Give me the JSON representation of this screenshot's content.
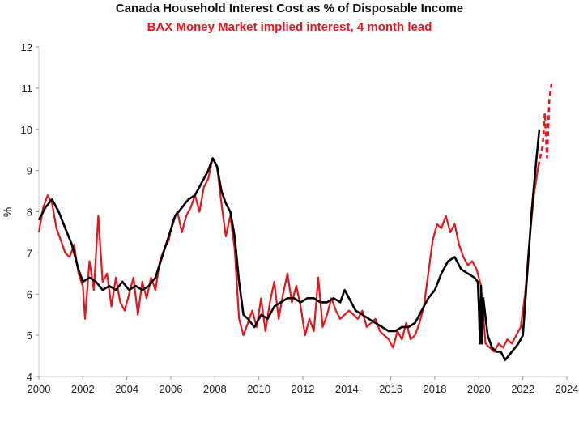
{
  "chart_data": {
    "type": "line",
    "title": "Canada Household Interest Cost as % of Disposable Income",
    "subtitle": "BAX Money Market implied interest, 4 month lead",
    "xlabel": "",
    "ylabel": "%",
    "xlim": [
      2000,
      2024
    ],
    "ylim": [
      4,
      12
    ],
    "x_ticks": [
      "2000",
      "2002",
      "2004",
      "2006",
      "2008",
      "2010",
      "2012",
      "2014",
      "2016",
      "2018",
      "2020",
      "2022",
      "2024"
    ],
    "y_ticks": [
      "4",
      "5",
      "6",
      "7",
      "8",
      "9",
      "10",
      "11",
      "12"
    ],
    "grid": false,
    "legend": "none",
    "series": [
      {
        "name": "Canada Household Interest Cost as % of Disposable Income",
        "color": "#000000",
        "x": [
          2000.0,
          2000.3,
          2000.6,
          2000.9,
          2001.2,
          2001.5,
          2001.8,
          2002.0,
          2002.3,
          2002.6,
          2002.9,
          2003.2,
          2003.5,
          2003.8,
          2004.1,
          2004.4,
          2004.7,
          2005.0,
          2005.3,
          2005.6,
          2005.9,
          2006.2,
          2006.5,
          2006.8,
          2007.1,
          2007.4,
          2007.7,
          2007.9,
          2008.1,
          2008.3,
          2008.5,
          2008.7,
          2008.9,
          2009.1,
          2009.3,
          2009.5,
          2009.8,
          2010.1,
          2010.4,
          2010.7,
          2011.0,
          2011.3,
          2011.6,
          2011.9,
          2012.2,
          2012.5,
          2012.8,
          2013.1,
          2013.4,
          2013.7,
          2013.9,
          2014.1,
          2014.4,
          2014.7,
          2015.0,
          2015.3,
          2015.6,
          2015.9,
          2016.2,
          2016.5,
          2016.8,
          2017.1,
          2017.4,
          2017.7,
          2018.0,
          2018.3,
          2018.6,
          2018.9,
          2019.2,
          2019.5,
          2019.8,
          2019.95,
          2020.0,
          2020.05,
          2020.1,
          2020.15,
          2020.2,
          2020.4,
          2020.6,
          2020.8,
          2021.0,
          2021.2,
          2021.5,
          2021.8,
          2022.0,
          2022.2,
          2022.4,
          2022.6,
          2022.75
        ],
        "y": [
          7.8,
          8.1,
          8.3,
          8.0,
          7.6,
          7.2,
          6.6,
          6.3,
          6.4,
          6.3,
          6.1,
          6.2,
          6.1,
          6.3,
          6.1,
          6.2,
          6.1,
          6.2,
          6.4,
          6.9,
          7.4,
          7.9,
          8.1,
          8.3,
          8.4,
          8.7,
          9.0,
          9.3,
          9.1,
          8.5,
          8.2,
          8.0,
          7.4,
          6.3,
          5.5,
          5.4,
          5.2,
          5.5,
          5.4,
          5.7,
          5.8,
          5.9,
          5.9,
          5.8,
          5.9,
          5.9,
          5.8,
          5.8,
          5.9,
          5.8,
          6.1,
          5.9,
          5.6,
          5.5,
          5.4,
          5.3,
          5.2,
          5.1,
          5.1,
          5.2,
          5.2,
          5.3,
          5.6,
          5.9,
          6.1,
          6.5,
          6.8,
          6.9,
          6.6,
          6.5,
          6.4,
          6.3,
          5.7,
          4.8,
          6.2,
          4.8,
          5.9,
          5.0,
          4.7,
          4.6,
          4.6,
          4.4,
          4.6,
          4.8,
          5.0,
          6.5,
          8.0,
          9.2,
          10.0
        ]
      },
      {
        "name": "BAX Money Market implied interest, 4 month lead",
        "color": "#e8141c",
        "dashed_from": 2022.9,
        "x": [
          2000.0,
          2000.2,
          2000.4,
          2000.6,
          2000.8,
          2001.0,
          2001.2,
          2001.4,
          2001.6,
          2001.8,
          2002.0,
          2002.1,
          2002.3,
          2002.5,
          2002.7,
          2002.9,
          2003.1,
          2003.3,
          2003.5,
          2003.7,
          2003.9,
          2004.1,
          2004.3,
          2004.5,
          2004.7,
          2004.9,
          2005.1,
          2005.3,
          2005.5,
          2005.7,
          2005.9,
          2006.1,
          2006.3,
          2006.5,
          2006.7,
          2006.9,
          2007.1,
          2007.3,
          2007.5,
          2007.7,
          2007.9,
          2008.1,
          2008.3,
          2008.5,
          2008.7,
          2008.9,
          2009.1,
          2009.3,
          2009.5,
          2009.7,
          2009.9,
          2010.1,
          2010.3,
          2010.5,
          2010.7,
          2010.9,
          2011.1,
          2011.3,
          2011.5,
          2011.7,
          2011.9,
          2012.1,
          2012.3,
          2012.5,
          2012.7,
          2012.9,
          2013.1,
          2013.3,
          2013.5,
          2013.7,
          2013.9,
          2014.1,
          2014.3,
          2014.5,
          2014.7,
          2014.9,
          2015.1,
          2015.3,
          2015.5,
          2015.7,
          2015.9,
          2016.1,
          2016.3,
          2016.5,
          2016.7,
          2016.9,
          2017.1,
          2017.3,
          2017.5,
          2017.7,
          2017.9,
          2018.1,
          2018.3,
          2018.5,
          2018.7,
          2018.9,
          2019.1,
          2019.3,
          2019.5,
          2019.7,
          2019.9,
          2020.1,
          2020.3,
          2020.5,
          2020.7,
          2020.9,
          2021.1,
          2021.3,
          2021.5,
          2021.7,
          2021.9,
          2022.1,
          2022.3,
          2022.5,
          2022.7,
          2022.9,
          2023.0,
          2023.1,
          2023.2,
          2023.3
        ],
        "y": [
          7.5,
          8.1,
          8.4,
          8.2,
          7.6,
          7.3,
          7.0,
          6.9,
          7.2,
          6.5,
          6.2,
          5.4,
          6.8,
          6.1,
          7.9,
          6.3,
          6.5,
          5.7,
          6.4,
          5.8,
          5.6,
          6.0,
          6.4,
          5.5,
          6.3,
          5.9,
          6.4,
          6.1,
          6.8,
          7.1,
          7.3,
          7.8,
          8.0,
          7.5,
          7.9,
          8.1,
          8.4,
          8.0,
          8.6,
          8.8,
          9.3,
          9.1,
          8.2,
          7.4,
          7.9,
          7.1,
          5.4,
          5.0,
          5.3,
          5.6,
          5.2,
          5.9,
          5.1,
          5.8,
          6.3,
          5.4,
          6.0,
          6.5,
          5.8,
          6.2,
          5.7,
          5.0,
          5.4,
          5.1,
          6.4,
          5.2,
          5.5,
          5.9,
          5.6,
          5.4,
          5.5,
          5.6,
          5.5,
          5.4,
          5.6,
          5.2,
          5.3,
          5.4,
          5.1,
          5.0,
          4.9,
          4.7,
          5.1,
          4.9,
          5.3,
          4.9,
          5.0,
          5.3,
          5.7,
          6.5,
          7.3,
          7.7,
          7.6,
          7.9,
          7.5,
          7.7,
          7.2,
          6.9,
          6.7,
          6.8,
          6.6,
          6.2,
          4.8,
          4.7,
          4.6,
          4.8,
          4.7,
          4.9,
          4.8,
          5.0,
          5.2,
          6.0,
          7.3,
          8.4,
          9.1,
          9.6,
          10.4,
          9.3,
          10.7,
          11.1
        ]
      }
    ]
  }
}
